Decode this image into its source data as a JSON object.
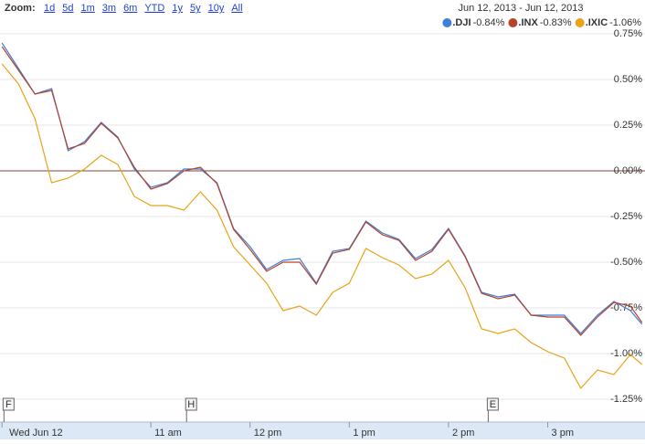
{
  "chart_data": {
    "type": "line",
    "zoom": {
      "label": "Zoom:",
      "options": [
        "1d",
        "5d",
        "1m",
        "3m",
        "6m",
        "YTD",
        "1y",
        "5y",
        "10y",
        "All"
      ]
    },
    "date_range": "Jun 12, 2013 - Jun 12, 2013",
    "x": [
      9.5,
      9.667,
      9.833,
      10,
      10.167,
      10.333,
      10.5,
      10.667,
      10.833,
      11,
      11.167,
      11.333,
      11.5,
      11.667,
      11.833,
      12,
      12.167,
      12.333,
      12.5,
      12.667,
      12.833,
      13,
      13.167,
      13.333,
      13.5,
      13.667,
      13.833,
      14,
      14.167,
      14.333,
      14.5,
      14.667,
      14.833,
      15,
      15.167,
      15.333,
      15.5,
      15.667,
      15.833,
      15.95
    ],
    "series": [
      {
        "name": ".DJI",
        "change": "-0.84%",
        "color": "#3d7fd9",
        "values": [
          0.7,
          0.56,
          0.42,
          0.45,
          0.11,
          0.16,
          0.265,
          0.185,
          0.01,
          -0.09,
          -0.065,
          0.01,
          0.01,
          -0.065,
          -0.315,
          -0.415,
          -0.54,
          -0.49,
          -0.48,
          -0.615,
          -0.44,
          -0.425,
          -0.275,
          -0.34,
          -0.375,
          -0.48,
          -0.43,
          -0.315,
          -0.465,
          -0.665,
          -0.69,
          -0.675,
          -0.79,
          -0.79,
          -0.79,
          -0.89,
          -0.79,
          -0.715,
          -0.765,
          -0.84
        ]
      },
      {
        "name": ".INX",
        "change": "-0.83%",
        "color": "#b8412a",
        "values": [
          0.68,
          0.55,
          0.42,
          0.44,
          0.12,
          0.15,
          0.26,
          0.18,
          0.02,
          -0.1,
          -0.07,
          0.0,
          0.02,
          -0.07,
          -0.32,
          -0.43,
          -0.55,
          -0.5,
          -0.5,
          -0.62,
          -0.45,
          -0.43,
          -0.28,
          -0.35,
          -0.38,
          -0.49,
          -0.44,
          -0.32,
          -0.47,
          -0.67,
          -0.7,
          -0.68,
          -0.79,
          -0.8,
          -0.8,
          -0.9,
          -0.8,
          -0.72,
          -0.74,
          -0.83
        ]
      },
      {
        "name": ".IXIC",
        "change": "-1.06%",
        "color": "#e8a317",
        "values": [
          0.585,
          0.475,
          0.285,
          -0.065,
          -0.04,
          0.01,
          0.085,
          0.035,
          -0.14,
          -0.19,
          -0.19,
          -0.215,
          -0.115,
          -0.215,
          -0.415,
          -0.515,
          -0.615,
          -0.765,
          -0.74,
          -0.79,
          -0.665,
          -0.615,
          -0.425,
          -0.475,
          -0.515,
          -0.59,
          -0.565,
          -0.49,
          -0.64,
          -0.865,
          -0.89,
          -0.865,
          -0.94,
          -0.99,
          -1.025,
          -1.19,
          -1.09,
          -1.115,
          -1.005,
          -1.06
        ]
      }
    ],
    "xlim": [
      9.48,
      15.98
    ],
    "xticks": [
      {
        "value": 9.5,
        "label": "Wed Jun 12"
      },
      {
        "value": 11,
        "label": "11 am"
      },
      {
        "value": 12,
        "label": "12 pm"
      },
      {
        "value": 13,
        "label": "1 pm"
      },
      {
        "value": 14,
        "label": "2 pm"
      },
      {
        "value": 15,
        "label": "3 pm"
      }
    ],
    "ylim": [
      -1.34,
      0.785
    ],
    "yticks": [
      {
        "value": 0.75,
        "label": "0.75%"
      },
      {
        "value": 0.5,
        "label": "0.50%"
      },
      {
        "value": 0.25,
        "label": "0.25%"
      },
      {
        "value": 0,
        "label": "0.00%"
      },
      {
        "value": -0.25,
        "label": "-0.25%"
      },
      {
        "value": -0.5,
        "label": "-0.50%"
      },
      {
        "value": -0.75,
        "label": "-0.75%"
      },
      {
        "value": -1,
        "label": "-1.00%"
      },
      {
        "value": -1.25,
        "label": "-1.25%"
      }
    ],
    "annotations": [
      {
        "label": "F",
        "x": 9.52
      },
      {
        "label": "H",
        "x": 11.36
      },
      {
        "label": "E",
        "x": 14.4
      }
    ],
    "grid": true,
    "baseline": true
  }
}
